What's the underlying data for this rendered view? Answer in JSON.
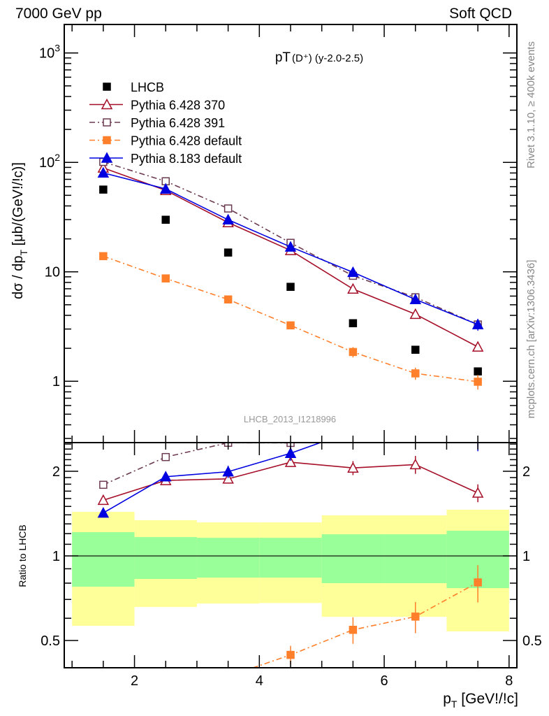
{
  "header": {
    "left": "7000 GeV pp",
    "right": "Soft QCD"
  },
  "side_labels": {
    "rivet": "Rivet 3.1.10, ≥ 400k events",
    "mcplots": "mcplots.cern.ch [arXiv:1306.3436]"
  },
  "watermark": "LHCB_2013_I1218996",
  "chart_data": [
    {
      "type": "line",
      "panel": "main",
      "title": "pT(D⁺) (y-2.0-2.5)",
      "title_main": "pT",
      "title_sub": "(D⁺) (y-2.0-2.5)",
      "ylabel": "dσ / dp_T [μb/(GeV!/!c)]",
      "ylabel_parts": {
        "a": "dσ / dp",
        "sub": "T",
        "b": " [μb/(GeV!/!c)]"
      },
      "yscale": "log",
      "xlim": [
        0.875,
        8.125
      ],
      "ylim": [
        0.275,
        1820
      ],
      "ytick_labels": [
        {
          "v": 1000,
          "t": "10",
          "sup": "3"
        },
        {
          "v": 100,
          "t": "10",
          "sup": "2"
        },
        {
          "v": 10,
          "t": "10"
        },
        {
          "v": 1,
          "t": "1"
        }
      ],
      "legend_position": "top-left",
      "x": [
        1.5,
        2.5,
        3.5,
        4.5,
        5.5,
        6.5,
        7.5
      ],
      "series": [
        {
          "name": "LHCB",
          "color": "#000000",
          "marker": "square-filled",
          "line": "none",
          "values": [
            56.4,
            29.9,
            15.0,
            7.29,
            3.39,
            1.94,
            1.23
          ],
          "errors": [
            0,
            0,
            0,
            0,
            0,
            0,
            0
          ]
        },
        {
          "name": "Pythia 6.428 370",
          "color": "#a50f28",
          "marker": "triangle-open",
          "line": "solid",
          "values": [
            89,
            55.5,
            28.2,
            15.7,
            6.97,
            4.1,
            2.06
          ],
          "errors": [
            3,
            1.5,
            1,
            0.6,
            0.4,
            0.3,
            0.15
          ]
        },
        {
          "name": "Pythia 6.428 391",
          "color": "#6b3a50",
          "marker": "square-open",
          "line": "dashdot",
          "values": [
            101,
            67.2,
            37.9,
            18.4,
            9.2,
            5.85,
            3.3
          ],
          "errors": [
            2,
            1.5,
            1,
            0.5,
            0.4,
            0.3,
            0.3
          ]
        },
        {
          "name": "Pythia 6.428 default",
          "color": "#ff7f2a",
          "marker": "square-filled",
          "line": "dashdot",
          "values": [
            13.9,
            8.7,
            5.59,
            3.24,
            1.85,
            1.18,
            0.99
          ],
          "errors": [
            0.3,
            0.3,
            0.25,
            0.25,
            0.2,
            0.15,
            0.15
          ]
        },
        {
          "name": "Pythia 8.183 default",
          "color": "#0000e0",
          "marker": "triangle-filled",
          "line": "solid",
          "values": [
            80.2,
            57.2,
            29.9,
            16.9,
            9.9,
            5.59,
            3.3
          ],
          "errors": [
            2,
            2,
            1.5,
            1,
            0.8,
            0.5,
            0.4
          ]
        }
      ]
    },
    {
      "type": "line",
      "panel": "ratio",
      "ylabel": "Ratio to LHCB",
      "xlabel": "p_T [GeV!/!c]",
      "xlabel_parts": {
        "a": "p",
        "sub": "T",
        "b": " [GeV!/!c]"
      },
      "yscale": "log",
      "xlim": [
        0.875,
        8.125
      ],
      "ylim": [
        0.4,
        2.53
      ],
      "xticks": [
        2,
        4,
        6,
        8
      ],
      "xtick_labels": [
        "2",
        "4",
        "6",
        "8"
      ],
      "yticks": [
        2,
        1,
        0.5
      ],
      "ytick_labels": [
        "2",
        "1",
        "0.5"
      ],
      "reference_line": 1,
      "bands": {
        "bin_edges": [
          1,
          2,
          3,
          4,
          5,
          6,
          7,
          8
        ],
        "yellow_colour": "#ffff99",
        "green_colour": "#99ff99",
        "outer_high": [
          1.435,
          1.34,
          1.316,
          1.316,
          1.394,
          1.394,
          1.46
        ],
        "inner_high": [
          1.215,
          1.167,
          1.16,
          1.16,
          1.194,
          1.194,
          1.229
        ],
        "inner_low": [
          0.777,
          0.828,
          0.837,
          0.837,
          0.8,
          0.8,
          0.768
        ],
        "outer_low": [
          0.564,
          0.658,
          0.677,
          0.68,
          0.607,
          0.607,
          0.539
        ]
      },
      "note": "ratio values = MC / LHCB of main panel"
    }
  ]
}
